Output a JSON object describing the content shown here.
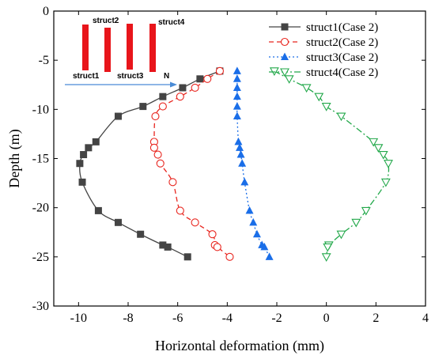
{
  "chart_data": {
    "type": "line",
    "xlabel": "Horizontal deformation (mm)",
    "ylabel": "Depth (m)",
    "xlim": [
      -11,
      4
    ],
    "ylim": [
      -30,
      0
    ],
    "xticks": [
      -10,
      -8,
      -6,
      -4,
      -2,
      0,
      2,
      4
    ],
    "yticks": [
      0,
      -5,
      -10,
      -15,
      -20,
      -25,
      -30
    ],
    "legend_position": "top-right",
    "series": [
      {
        "name": "struct1(Case 2)",
        "color": "#444444",
        "marker": "square-filled",
        "line": "solid",
        "x": [
          -4.3,
          -5.1,
          -5.8,
          -6.6,
          -7.4,
          -8.4,
          -9.3,
          -9.6,
          -9.8,
          -9.95,
          -9.85,
          -9.2,
          -8.4,
          -7.5,
          -6.6,
          -6.4,
          -5.6
        ],
        "y": [
          -6.1,
          -6.9,
          -7.8,
          -8.7,
          -9.7,
          -10.7,
          -13.3,
          -13.9,
          -14.6,
          -15.5,
          -17.4,
          -20.3,
          -21.5,
          -22.7,
          -23.8,
          -24.0,
          -25.0
        ]
      },
      {
        "name": "struct2(Case 2)",
        "color": "#e8251e",
        "marker": "circle-open",
        "line": "dashed",
        "x": [
          -4.3,
          -4.8,
          -5.3,
          -5.9,
          -6.6,
          -6.9,
          -6.95,
          -6.95,
          -6.8,
          -6.7,
          -6.2,
          -5.9,
          -5.3,
          -4.6,
          -4.5,
          -4.4,
          -3.9
        ],
        "y": [
          -6.1,
          -6.9,
          -7.8,
          -8.7,
          -9.7,
          -10.7,
          -13.3,
          -13.9,
          -14.6,
          -15.5,
          -17.4,
          -20.3,
          -21.5,
          -22.7,
          -23.8,
          -24.0,
          -25.0
        ]
      },
      {
        "name": "struct3(Case 2)",
        "color": "#1a6ee8",
        "marker": "triangle-filled",
        "line": "dotted",
        "x": [
          -3.6,
          -3.6,
          -3.6,
          -3.6,
          -3.6,
          -3.6,
          -3.55,
          -3.5,
          -3.45,
          -3.4,
          -3.3,
          -3.1,
          -2.95,
          -2.8,
          -2.6,
          -2.5,
          -2.3
        ],
        "y": [
          -6.1,
          -6.9,
          -7.8,
          -8.7,
          -9.7,
          -10.7,
          -13.3,
          -13.9,
          -14.6,
          -15.5,
          -17.4,
          -20.3,
          -21.5,
          -22.7,
          -23.8,
          -24.0,
          -25.0
        ]
      },
      {
        "name": "struct4(Case 2)",
        "color": "#22a84a",
        "marker": "triangle-down-open",
        "line": "dashdot",
        "x": [
          -2.1,
          -1.5,
          -0.8,
          -0.3,
          0.0,
          0.6,
          1.9,
          2.1,
          2.3,
          2.5,
          2.4,
          1.6,
          1.2,
          0.6,
          0.1,
          0.05,
          0.0
        ],
        "y": [
          -6.1,
          -6.9,
          -7.8,
          -8.7,
          -9.7,
          -10.7,
          -13.3,
          -13.9,
          -14.6,
          -15.5,
          -17.4,
          -20.3,
          -21.5,
          -22.7,
          -23.8,
          -24.0,
          -25.0
        ]
      }
    ],
    "inset": {
      "labels": [
        "struct1",
        "struct2",
        "struct3",
        "struct4"
      ],
      "bar_color": "#e8151b",
      "arrow_label": "N"
    }
  }
}
